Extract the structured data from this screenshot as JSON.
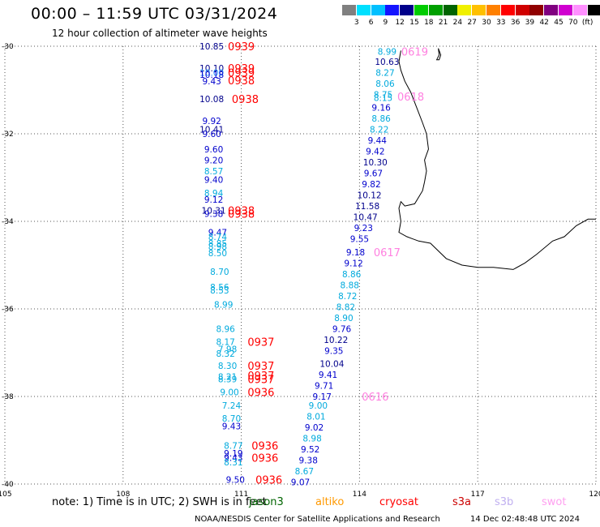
{
  "header": {
    "title": "00:00 – 11:59 UTC 03/31/2024",
    "subtitle": "12 hour collection of altimeter wave heights"
  },
  "legend": {
    "unit_label": "(ft)",
    "bins": [
      {
        "label": "",
        "color": "#808080"
      },
      {
        "label": "3",
        "color": "#00e0ff"
      },
      {
        "label": "6",
        "color": "#00c0ff"
      },
      {
        "label": "9",
        "color": "#1414ff"
      },
      {
        "label": "12",
        "color": "#00008b"
      },
      {
        "label": "15",
        "color": "#00cc00"
      },
      {
        "label": "18",
        "color": "#00a000"
      },
      {
        "label": "21",
        "color": "#006400"
      },
      {
        "label": "24",
        "color": "#f0f000"
      },
      {
        "label": "27",
        "color": "#ffc000"
      },
      {
        "label": "30",
        "color": "#ff8000"
      },
      {
        "label": "33",
        "color": "#ff0000"
      },
      {
        "label": "36",
        "color": "#d00000"
      },
      {
        "label": "39",
        "color": "#900000"
      },
      {
        "label": "42",
        "color": "#800080"
      },
      {
        "label": "45",
        "color": "#d000d0"
      },
      {
        "label": "70",
        "color": "#ff90ff"
      },
      {
        "label": "(ft)",
        "color": "#000000"
      }
    ]
  },
  "axes": {
    "lat_labels": [
      "-30",
      "-32",
      "-34",
      "-36",
      "-38",
      "-40"
    ],
    "lon_labels": [
      "105",
      "108",
      "111",
      "114",
      "117",
      "120"
    ],
    "lat_range": [
      -40,
      -30
    ],
    "lon_range": [
      105,
      120
    ]
  },
  "colors": {
    "c3": "#00aadd",
    "c6": "#1e90ff",
    "c9": "#0000cd",
    "c12": "#00008b",
    "time_red": "#ff0000",
    "time_pink": "#ff80e0",
    "coast": "#000000"
  },
  "wave_heights": [
    {
      "lon": 110.25,
      "lat": -30.0,
      "value": "10.85",
      "color": "#00008b"
    },
    {
      "lon": 110.25,
      "lat": -30.5,
      "value": "10.10",
      "color": "#00008b"
    },
    {
      "lon": 110.25,
      "lat": -30.6,
      "value": "10.00",
      "color": "#1e90ff"
    },
    {
      "lon": 110.25,
      "lat": -30.65,
      "value": "10.18",
      "color": "#0000cd"
    },
    {
      "lon": 110.25,
      "lat": -30.8,
      "value": "9.43",
      "color": "#0000cd"
    },
    {
      "lon": 110.25,
      "lat": -31.2,
      "value": "10.08",
      "color": "#00008b"
    },
    {
      "lon": 110.25,
      "lat": -31.7,
      "value": "9.92",
      "color": "#0000cd"
    },
    {
      "lon": 110.25,
      "lat": -31.9,
      "value": "10.41",
      "color": "#00008b"
    },
    {
      "lon": 110.25,
      "lat": -32.0,
      "value": "9.60",
      "color": "#0000cd"
    },
    {
      "lon": 110.3,
      "lat": -32.35,
      "value": "9.60",
      "color": "#0000cd"
    },
    {
      "lon": 110.3,
      "lat": -32.6,
      "value": "9.20",
      "color": "#0000cd"
    },
    {
      "lon": 110.3,
      "lat": -32.85,
      "value": "8.57",
      "color": "#00aadd"
    },
    {
      "lon": 110.3,
      "lat": -33.05,
      "value": "9.40",
      "color": "#0000cd"
    },
    {
      "lon": 110.3,
      "lat": -33.35,
      "value": "8.94",
      "color": "#00aadd"
    },
    {
      "lon": 110.3,
      "lat": -33.5,
      "value": "9.12",
      "color": "#0000cd"
    },
    {
      "lon": 110.3,
      "lat": -33.75,
      "value": "10.31",
      "color": "#00008b"
    },
    {
      "lon": 110.3,
      "lat": -33.82,
      "value": "9.38",
      "color": "#0000cd"
    },
    {
      "lon": 110.4,
      "lat": -34.25,
      "value": "9.47",
      "color": "#0000cd"
    },
    {
      "lon": 110.4,
      "lat": -34.35,
      "value": "8.74",
      "color": "#00aadd"
    },
    {
      "lon": 110.4,
      "lat": -34.5,
      "value": "8.85",
      "color": "#00aadd"
    },
    {
      "lon": 110.4,
      "lat": -34.57,
      "value": "8.98",
      "color": "#00aadd"
    },
    {
      "lon": 110.4,
      "lat": -34.72,
      "value": "8.50",
      "color": "#00aadd"
    },
    {
      "lon": 110.45,
      "lat": -35.15,
      "value": "8.70",
      "color": "#00aadd"
    },
    {
      "lon": 110.45,
      "lat": -35.5,
      "value": "8.56",
      "color": "#00aadd"
    },
    {
      "lon": 110.45,
      "lat": -35.57,
      "value": "8.53",
      "color": "#00aadd"
    },
    {
      "lon": 110.55,
      "lat": -35.9,
      "value": "8.99",
      "color": "#00aadd"
    },
    {
      "lon": 110.6,
      "lat": -36.45,
      "value": "8.96",
      "color": "#00aadd"
    },
    {
      "lon": 110.6,
      "lat": -36.75,
      "value": "8.17",
      "color": "#00aadd"
    },
    {
      "lon": 110.65,
      "lat": -36.92,
      "value": "7.98",
      "color": "#00aadd"
    },
    {
      "lon": 110.6,
      "lat": -37.02,
      "value": "8.32",
      "color": "#00aadd"
    },
    {
      "lon": 110.65,
      "lat": -37.3,
      "value": "8.30",
      "color": "#00aadd"
    },
    {
      "lon": 110.65,
      "lat": -37.55,
      "value": "8.21",
      "color": "#00aadd"
    },
    {
      "lon": 110.65,
      "lat": -37.6,
      "value": "8.39",
      "color": "#00aadd"
    },
    {
      "lon": 110.7,
      "lat": -37.9,
      "value": "9.00",
      "color": "#00aadd"
    },
    {
      "lon": 110.75,
      "lat": -38.2,
      "value": "7.24",
      "color": "#00aadd"
    },
    {
      "lon": 110.75,
      "lat": -38.5,
      "value": "8.70",
      "color": "#00aadd"
    },
    {
      "lon": 110.75,
      "lat": -38.68,
      "value": "9.43",
      "color": "#0000cd"
    },
    {
      "lon": 110.8,
      "lat": -39.12,
      "value": "8.77",
      "color": "#00aadd"
    },
    {
      "lon": 110.8,
      "lat": -39.3,
      "value": "9.19",
      "color": "#0000cd"
    },
    {
      "lon": 110.8,
      "lat": -39.4,
      "value": "9.43",
      "color": "#0000cd"
    },
    {
      "lon": 110.8,
      "lat": -39.5,
      "value": "8.31",
      "color": "#00aadd"
    },
    {
      "lon": 110.85,
      "lat": -39.9,
      "value": "9.50",
      "color": "#0000cd"
    },
    {
      "lon": 114.7,
      "lat": -30.12,
      "value": "8.99",
      "color": "#00aadd"
    },
    {
      "lon": 114.7,
      "lat": -30.35,
      "value": "10.63",
      "color": "#00008b"
    },
    {
      "lon": 114.65,
      "lat": -30.6,
      "value": "8.27",
      "color": "#00aadd"
    },
    {
      "lon": 114.65,
      "lat": -30.85,
      "value": "8.06",
      "color": "#00aadd"
    },
    {
      "lon": 114.6,
      "lat": -31.1,
      "value": "8.75",
      "color": "#00aadd"
    },
    {
      "lon": 114.6,
      "lat": -31.18,
      "value": "8.15",
      "color": "#00aadd"
    },
    {
      "lon": 114.55,
      "lat": -31.4,
      "value": "9.16",
      "color": "#0000cd"
    },
    {
      "lon": 114.55,
      "lat": -31.65,
      "value": "8.86",
      "color": "#00aadd"
    },
    {
      "lon": 114.5,
      "lat": -31.9,
      "value": "8.22",
      "color": "#00aadd"
    },
    {
      "lon": 114.45,
      "lat": -32.15,
      "value": "9.44",
      "color": "#0000cd"
    },
    {
      "lon": 114.4,
      "lat": -32.4,
      "value": "9.42",
      "color": "#0000cd"
    },
    {
      "lon": 114.4,
      "lat": -32.65,
      "value": "10.30",
      "color": "#00008b"
    },
    {
      "lon": 114.35,
      "lat": -32.9,
      "value": "9.67",
      "color": "#0000cd"
    },
    {
      "lon": 114.3,
      "lat": -33.15,
      "value": "9.82",
      "color": "#0000cd"
    },
    {
      "lon": 114.25,
      "lat": -33.4,
      "value": "10.12",
      "color": "#00008b"
    },
    {
      "lon": 114.2,
      "lat": -33.65,
      "value": "11.58",
      "color": "#00008b"
    },
    {
      "lon": 114.15,
      "lat": -33.9,
      "value": "10.47",
      "color": "#00008b"
    },
    {
      "lon": 114.1,
      "lat": -34.15,
      "value": "9.23",
      "color": "#0000cd"
    },
    {
      "lon": 114.0,
      "lat": -34.4,
      "value": "9.55",
      "color": "#0000cd"
    },
    {
      "lon": 113.9,
      "lat": -34.7,
      "value": "9.18",
      "color": "#0000cd"
    },
    {
      "lon": 113.85,
      "lat": -34.95,
      "value": "9.12",
      "color": "#0000cd"
    },
    {
      "lon": 113.8,
      "lat": -35.2,
      "value": "8.86",
      "color": "#00aadd"
    },
    {
      "lon": 113.75,
      "lat": -35.45,
      "value": "8.88",
      "color": "#00aadd"
    },
    {
      "lon": 113.7,
      "lat": -35.7,
      "value": "8.72",
      "color": "#00aadd"
    },
    {
      "lon": 113.65,
      "lat": -35.95,
      "value": "8.82",
      "color": "#00aadd"
    },
    {
      "lon": 113.6,
      "lat": -36.2,
      "value": "8.90",
      "color": "#00aadd"
    },
    {
      "lon": 113.55,
      "lat": -36.45,
      "value": "9.76",
      "color": "#0000cd"
    },
    {
      "lon": 113.4,
      "lat": -36.7,
      "value": "10.22",
      "color": "#00008b"
    },
    {
      "lon": 113.35,
      "lat": -36.95,
      "value": "9.35",
      "color": "#0000cd"
    },
    {
      "lon": 113.3,
      "lat": -37.25,
      "value": "10.04",
      "color": "#00008b"
    },
    {
      "lon": 113.2,
      "lat": -37.5,
      "value": "9.41",
      "color": "#0000cd"
    },
    {
      "lon": 113.1,
      "lat": -37.75,
      "value": "9.71",
      "color": "#0000cd"
    },
    {
      "lon": 113.05,
      "lat": -38.0,
      "value": "9.17",
      "color": "#0000cd"
    },
    {
      "lon": 112.95,
      "lat": -38.2,
      "value": "9.00",
      "color": "#00aadd"
    },
    {
      "lon": 112.9,
      "lat": -38.45,
      "value": "8.01",
      "color": "#00aadd"
    },
    {
      "lon": 112.85,
      "lat": -38.7,
      "value": "9.02",
      "color": "#0000cd"
    },
    {
      "lon": 112.8,
      "lat": -38.95,
      "value": "8.98",
      "color": "#00aadd"
    },
    {
      "lon": 112.75,
      "lat": -39.2,
      "value": "9.52",
      "color": "#0000cd"
    },
    {
      "lon": 112.7,
      "lat": -39.45,
      "value": "9.38",
      "color": "#0000cd"
    },
    {
      "lon": 112.6,
      "lat": -39.7,
      "value": "8.67",
      "color": "#00aadd"
    },
    {
      "lon": 112.5,
      "lat": -39.95,
      "value": "9.07",
      "color": "#0000cd"
    }
  ],
  "time_labels": [
    {
      "lon": 111.0,
      "lat": -30.0,
      "value": "0939",
      "color": "#ff0000"
    },
    {
      "lon": 111.0,
      "lat": -30.5,
      "value": "0939",
      "color": "#ff0000"
    },
    {
      "lon": 111.0,
      "lat": -30.6,
      "value": "0939",
      "color": "#ff0000"
    },
    {
      "lon": 111.0,
      "lat": -30.78,
      "value": "0938",
      "color": "#ff0000"
    },
    {
      "lon": 111.1,
      "lat": -31.2,
      "value": "0938",
      "color": "#ff0000"
    },
    {
      "lon": 111.0,
      "lat": -33.75,
      "value": "0938",
      "color": "#ff0000"
    },
    {
      "lon": 111.0,
      "lat": -33.82,
      "value": "0938",
      "color": "#ff0000"
    },
    {
      "lon": 111.5,
      "lat": -36.75,
      "value": "0937",
      "color": "#ff0000"
    },
    {
      "lon": 111.5,
      "lat": -37.3,
      "value": "0937",
      "color": "#ff0000"
    },
    {
      "lon": 111.5,
      "lat": -37.52,
      "value": "0937",
      "color": "#ff0000"
    },
    {
      "lon": 111.5,
      "lat": -37.6,
      "value": "0937",
      "color": "#ff0000"
    },
    {
      "lon": 111.5,
      "lat": -37.9,
      "value": "0936",
      "color": "#ff0000"
    },
    {
      "lon": 111.6,
      "lat": -39.12,
      "value": "0936",
      "color": "#ff0000"
    },
    {
      "lon": 111.6,
      "lat": -39.4,
      "value": "0936",
      "color": "#ff0000"
    },
    {
      "lon": 111.7,
      "lat": -39.9,
      "value": "0936",
      "color": "#ff0000"
    },
    {
      "lon": 115.4,
      "lat": -30.12,
      "value": "0619",
      "color": "#ff80e0"
    },
    {
      "lon": 115.3,
      "lat": -31.15,
      "value": "0618",
      "color": "#ff80e0"
    },
    {
      "lon": 114.7,
      "lat": -34.7,
      "value": "0617",
      "color": "#ff80e0"
    },
    {
      "lon": 114.4,
      "lat": -38.0,
      "value": "0616",
      "color": "#ff80e0"
    }
  ],
  "footer": {
    "note": "note:  1) Time is in UTC; 2) SWH is in feet",
    "satellites": [
      {
        "name": "jason3",
        "color": "#006400"
      },
      {
        "name": "altiko",
        "color": "#ff9900"
      },
      {
        "name": "cryosat",
        "color": "#ff0000"
      },
      {
        "name": "s3a",
        "color": "#cc0000"
      },
      {
        "name": "s3b",
        "color": "#c0b0f0"
      },
      {
        "name": "swot",
        "color": "#ffa0f0"
      }
    ],
    "credit": "NOAA/NESDIS Center for Satellite Applications and Research",
    "timestamp": "14 Dec 02:48:48 UTC 2024"
  }
}
